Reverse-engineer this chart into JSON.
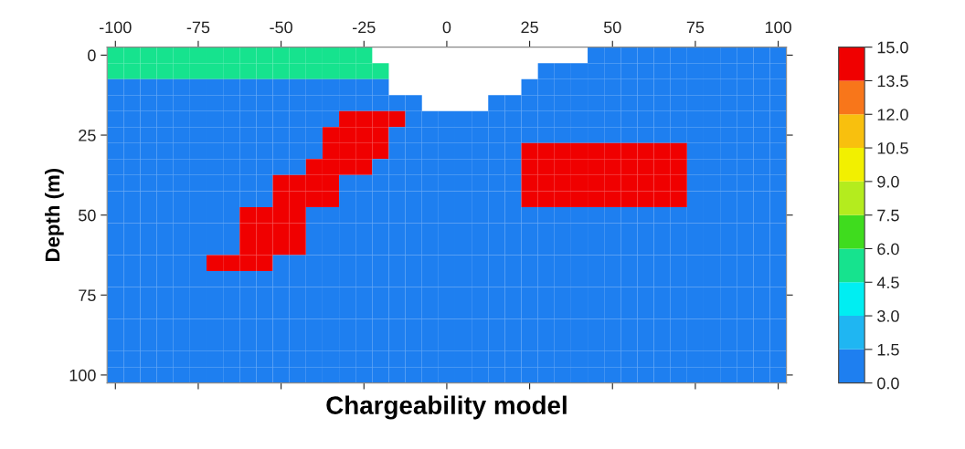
{
  "chart_data": {
    "type": "heatmap",
    "xlabel": "Chargeability model",
    "ylabel": "Depth (m)",
    "categories": [
      "-100",
      null,
      null,
      null,
      null,
      "-75",
      null,
      null,
      null,
      null,
      "-50",
      null,
      null,
      null,
      null,
      "-25",
      null,
      null,
      null,
      null,
      "0",
      null,
      null,
      null,
      null,
      "25",
      null,
      null,
      null,
      null,
      "50",
      null,
      null,
      null,
      null,
      "75",
      null,
      null,
      null,
      null,
      "100"
    ],
    "y_categories": [
      "0",
      null,
      null,
      null,
      null,
      "25",
      null,
      null,
      null,
      null,
      "50",
      null,
      null,
      null,
      null,
      "75",
      null,
      null,
      null,
      null,
      "100"
    ],
    "clim": [
      0,
      15
    ],
    "cticks": [
      {
        "value": 0,
        "label": "0.0"
      },
      {
        "value": 1.5,
        "label": "1.5"
      },
      {
        "value": 3,
        "label": "3.0"
      },
      {
        "value": 4.5,
        "label": "4.5"
      },
      {
        "value": 6,
        "label": "6.0"
      },
      {
        "value": 7.5,
        "label": "7.5"
      },
      {
        "value": 9,
        "label": "9.0"
      },
      {
        "value": 10.5,
        "label": "10.5"
      },
      {
        "value": 12,
        "label": "12.0"
      },
      {
        "value": 13.5,
        "label": "13.5"
      },
      {
        "value": 15,
        "label": "15.0"
      }
    ],
    "colors": [
      "#1e7ff0",
      "#1fb6f2",
      "#00eef2",
      "#16e38e",
      "#3fdc1e",
      "#b4ec1e",
      "#f2f000",
      "#f8c00e",
      "#f8761a",
      "#f00000"
    ],
    "cells": [
      [
        5,
        5,
        5,
        5,
        5,
        5,
        5,
        5,
        5,
        5,
        5,
        5,
        5,
        5,
        5,
        5,
        null,
        null,
        null,
        null,
        null,
        null,
        null,
        null,
        null,
        null,
        null,
        null,
        null,
        1,
        1,
        1,
        1,
        1,
        1,
        1,
        1,
        1,
        1,
        1,
        1
      ],
      [
        5,
        5,
        5,
        5,
        5,
        5,
        5,
        5,
        5,
        5,
        5,
        5,
        5,
        5,
        5,
        5,
        5,
        null,
        null,
        null,
        null,
        null,
        null,
        null,
        null,
        null,
        1,
        1,
        1,
        1,
        1,
        1,
        1,
        1,
        1,
        1,
        1,
        1,
        1,
        1,
        1
      ],
      [
        1,
        1,
        1,
        1,
        1,
        1,
        1,
        1,
        1,
        1,
        1,
        1,
        1,
        1,
        1,
        1,
        1,
        null,
        null,
        null,
        null,
        null,
        null,
        null,
        null,
        1,
        1,
        1,
        1,
        1,
        1,
        1,
        1,
        1,
        1,
        1,
        1,
        1,
        1,
        1,
        1
      ],
      [
        1,
        1,
        1,
        1,
        1,
        1,
        1,
        1,
        1,
        1,
        1,
        1,
        1,
        1,
        1,
        1,
        1,
        1,
        1,
        null,
        null,
        null,
        null,
        1,
        1,
        1,
        1,
        1,
        1,
        1,
        1,
        1,
        1,
        1,
        1,
        1,
        1,
        1,
        1,
        1,
        1
      ],
      [
        1,
        1,
        1,
        1,
        1,
        1,
        1,
        1,
        1,
        1,
        1,
        1,
        1,
        1,
        15,
        15,
        15,
        15,
        1,
        1,
        1,
        1,
        1,
        1,
        1,
        1,
        1,
        1,
        1,
        1,
        1,
        1,
        1,
        1,
        1,
        1,
        1,
        1,
        1,
        1,
        1
      ],
      [
        1,
        1,
        1,
        1,
        1,
        1,
        1,
        1,
        1,
        1,
        1,
        1,
        1,
        15,
        15,
        15,
        15,
        1,
        1,
        1,
        1,
        1,
        1,
        1,
        1,
        1,
        1,
        1,
        1,
        1,
        1,
        1,
        1,
        1,
        1,
        1,
        1,
        1,
        1,
        1,
        1
      ],
      [
        1,
        1,
        1,
        1,
        1,
        1,
        1,
        1,
        1,
        1,
        1,
        1,
        1,
        15,
        15,
        15,
        15,
        1,
        1,
        1,
        1,
        1,
        1,
        1,
        1,
        15,
        15,
        15,
        15,
        15,
        15,
        15,
        15,
        15,
        15,
        1,
        1,
        1,
        1,
        1,
        1
      ],
      [
        1,
        1,
        1,
        1,
        1,
        1,
        1,
        1,
        1,
        1,
        1,
        1,
        15,
        15,
        15,
        15,
        1,
        1,
        1,
        1,
        1,
        1,
        1,
        1,
        1,
        15,
        15,
        15,
        15,
        15,
        15,
        15,
        15,
        15,
        15,
        1,
        1,
        1,
        1,
        1,
        1
      ],
      [
        1,
        1,
        1,
        1,
        1,
        1,
        1,
        1,
        1,
        1,
        15,
        15,
        15,
        15,
        1,
        1,
        1,
        1,
        1,
        1,
        1,
        1,
        1,
        1,
        1,
        15,
        15,
        15,
        15,
        15,
        15,
        15,
        15,
        15,
        15,
        1,
        1,
        1,
        1,
        1,
        1
      ],
      [
        1,
        1,
        1,
        1,
        1,
        1,
        1,
        1,
        1,
        1,
        15,
        15,
        15,
        15,
        1,
        1,
        1,
        1,
        1,
        1,
        1,
        1,
        1,
        1,
        1,
        15,
        15,
        15,
        15,
        15,
        15,
        15,
        15,
        15,
        15,
        1,
        1,
        1,
        1,
        1,
        1
      ],
      [
        1,
        1,
        1,
        1,
        1,
        1,
        1,
        1,
        15,
        15,
        15,
        15,
        1,
        1,
        1,
        1,
        1,
        1,
        1,
        1,
        1,
        1,
        1,
        1,
        1,
        1,
        1,
        1,
        1,
        1,
        1,
        1,
        1,
        1,
        1,
        1,
        1,
        1,
        1,
        1,
        1
      ],
      [
        1,
        1,
        1,
        1,
        1,
        1,
        1,
        1,
        15,
        15,
        15,
        15,
        1,
        1,
        1,
        1,
        1,
        1,
        1,
        1,
        1,
        1,
        1,
        1,
        1,
        1,
        1,
        1,
        1,
        1,
        1,
        1,
        1,
        1,
        1,
        1,
        1,
        1,
        1,
        1,
        1
      ],
      [
        1,
        1,
        1,
        1,
        1,
        1,
        1,
        1,
        15,
        15,
        15,
        15,
        1,
        1,
        1,
        1,
        1,
        1,
        1,
        1,
        1,
        1,
        1,
        1,
        1,
        1,
        1,
        1,
        1,
        1,
        1,
        1,
        1,
        1,
        1,
        1,
        1,
        1,
        1,
        1,
        1
      ],
      [
        1,
        1,
        1,
        1,
        1,
        1,
        15,
        15,
        15,
        15,
        1,
        1,
        1,
        1,
        1,
        1,
        1,
        1,
        1,
        1,
        1,
        1,
        1,
        1,
        1,
        1,
        1,
        1,
        1,
        1,
        1,
        1,
        1,
        1,
        1,
        1,
        1,
        1,
        1,
        1,
        1
      ],
      [
        1,
        1,
        1,
        1,
        1,
        1,
        1,
        1,
        1,
        1,
        1,
        1,
        1,
        1,
        1,
        1,
        1,
        1,
        1,
        1,
        1,
        1,
        1,
        1,
        1,
        1,
        1,
        1,
        1,
        1,
        1,
        1,
        1,
        1,
        1,
        1,
        1,
        1,
        1,
        1,
        1
      ],
      [
        1,
        1,
        1,
        1,
        1,
        1,
        1,
        1,
        1,
        1,
        1,
        1,
        1,
        1,
        1,
        1,
        1,
        1,
        1,
        1,
        1,
        1,
        1,
        1,
        1,
        1,
        1,
        1,
        1,
        1,
        1,
        1,
        1,
        1,
        1,
        1,
        1,
        1,
        1,
        1,
        1
      ],
      [
        1,
        1,
        1,
        1,
        1,
        1,
        1,
        1,
        1,
        1,
        1,
        1,
        1,
        1,
        1,
        1,
        1,
        1,
        1,
        1,
        1,
        1,
        1,
        1,
        1,
        1,
        1,
        1,
        1,
        1,
        1,
        1,
        1,
        1,
        1,
        1,
        1,
        1,
        1,
        1,
        1
      ],
      [
        1,
        1,
        1,
        1,
        1,
        1,
        1,
        1,
        1,
        1,
        1,
        1,
        1,
        1,
        1,
        1,
        1,
        1,
        1,
        1,
        1,
        1,
        1,
        1,
        1,
        1,
        1,
        1,
        1,
        1,
        1,
        1,
        1,
        1,
        1,
        1,
        1,
        1,
        1,
        1,
        1
      ],
      [
        1,
        1,
        1,
        1,
        1,
        1,
        1,
        1,
        1,
        1,
        1,
        1,
        1,
        1,
        1,
        1,
        1,
        1,
        1,
        1,
        1,
        1,
        1,
        1,
        1,
        1,
        1,
        1,
        1,
        1,
        1,
        1,
        1,
        1,
        1,
        1,
        1,
        1,
        1,
        1,
        1
      ],
      [
        1,
        1,
        1,
        1,
        1,
        1,
        1,
        1,
        1,
        1,
        1,
        1,
        1,
        1,
        1,
        1,
        1,
        1,
        1,
        1,
        1,
        1,
        1,
        1,
        1,
        1,
        1,
        1,
        1,
        1,
        1,
        1,
        1,
        1,
        1,
        1,
        1,
        1,
        1,
        1,
        1
      ],
      [
        1,
        1,
        1,
        1,
        1,
        1,
        1,
        1,
        1,
        1,
        1,
        1,
        1,
        1,
        1,
        1,
        1,
        1,
        1,
        1,
        1,
        1,
        1,
        1,
        1,
        1,
        1,
        1,
        1,
        1,
        1,
        1,
        1,
        1,
        1,
        1,
        1,
        1,
        1,
        1,
        1
      ]
    ]
  }
}
